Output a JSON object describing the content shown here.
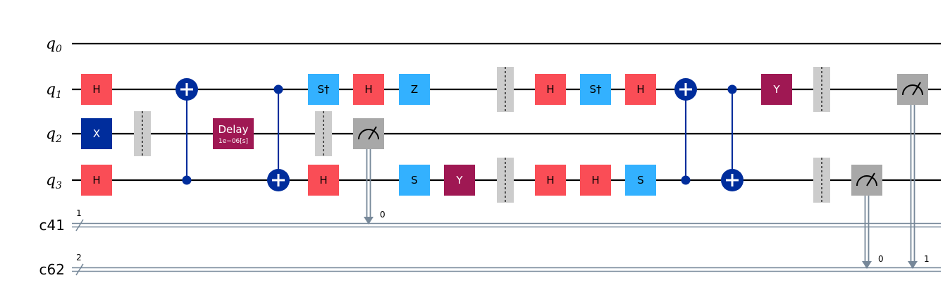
{
  "qubits": [
    {
      "name": "q",
      "index": "0"
    },
    {
      "name": "q",
      "index": "1"
    },
    {
      "name": "q",
      "index": "2"
    },
    {
      "name": "q",
      "index": "3"
    }
  ],
  "clbits": [
    {
      "name": "c41",
      "size": "1"
    },
    {
      "name": "c62",
      "size": "2"
    }
  ],
  "colors": {
    "h": "#fa4d56",
    "x": "#002d9c",
    "s": "#33b1ff",
    "y": "#9f1853",
    "delay": "#9f1853",
    "measure": "#a8a8a8",
    "barrier": "#cccccc",
    "control": "#002d9c",
    "classical": "#778899"
  },
  "gates": [
    {
      "type": "H",
      "label": "H",
      "qubit": 1,
      "col": 1
    },
    {
      "type": "X",
      "label": "X",
      "qubit": 2,
      "col": 1
    },
    {
      "type": "H",
      "label": "H",
      "qubit": 3,
      "col": 1
    },
    {
      "type": "DELAY",
      "label": "Delay",
      "sublabel": "1e−06[s]",
      "qubit": 2,
      "col": 4
    },
    {
      "type": "S",
      "label": "S†",
      "qubit": 1,
      "col": 6
    },
    {
      "type": "H",
      "label": "H",
      "qubit": 3,
      "col": 6
    },
    {
      "type": "H",
      "label": "H",
      "qubit": 1,
      "col": 7
    },
    {
      "type": "Z",
      "label": "Z",
      "qubit": 1,
      "col": 8
    },
    {
      "type": "S",
      "label": "S",
      "qubit": 3,
      "col": 8
    },
    {
      "type": "Y",
      "label": "Y",
      "qubit": 3,
      "col": 9
    },
    {
      "type": "H",
      "label": "H",
      "qubit": 1,
      "col": 11
    },
    {
      "type": "H",
      "label": "H",
      "qubit": 3,
      "col": 11
    },
    {
      "type": "S",
      "label": "S†",
      "qubit": 1,
      "col": 12
    },
    {
      "type": "H",
      "label": "H",
      "qubit": 3,
      "col": 12
    },
    {
      "type": "H",
      "label": "H",
      "qubit": 1,
      "col": 13
    },
    {
      "type": "S",
      "label": "S",
      "qubit": 3,
      "col": 13
    },
    {
      "type": "Y",
      "label": "Y",
      "qubit": 1,
      "col": 16
    }
  ],
  "cnots": [
    {
      "control": 3,
      "target": 1,
      "col": 3
    },
    {
      "control": 1,
      "target": 3,
      "col": 5
    },
    {
      "control": 3,
      "target": 1,
      "col": 14
    },
    {
      "control": 1,
      "target": 3,
      "col": 15
    }
  ],
  "barriers": [
    {
      "qubits": [
        2
      ],
      "col": 2
    },
    {
      "qubits": [
        2
      ],
      "col": 6
    },
    {
      "qubits": [
        1
      ],
      "col": 10
    },
    {
      "qubits": [
        3
      ],
      "col": 10
    },
    {
      "qubits": [
        1
      ],
      "col": 17
    },
    {
      "qubits": [
        3
      ],
      "col": 17
    }
  ],
  "measures": [
    {
      "qubit": 2,
      "creg": 0,
      "bit_label": "0",
      "col": 7
    },
    {
      "qubit": 3,
      "creg": 1,
      "bit_label": "0",
      "col": 18
    },
    {
      "qubit": 1,
      "creg": 1,
      "bit_label": "1",
      "col": 19
    }
  ]
}
